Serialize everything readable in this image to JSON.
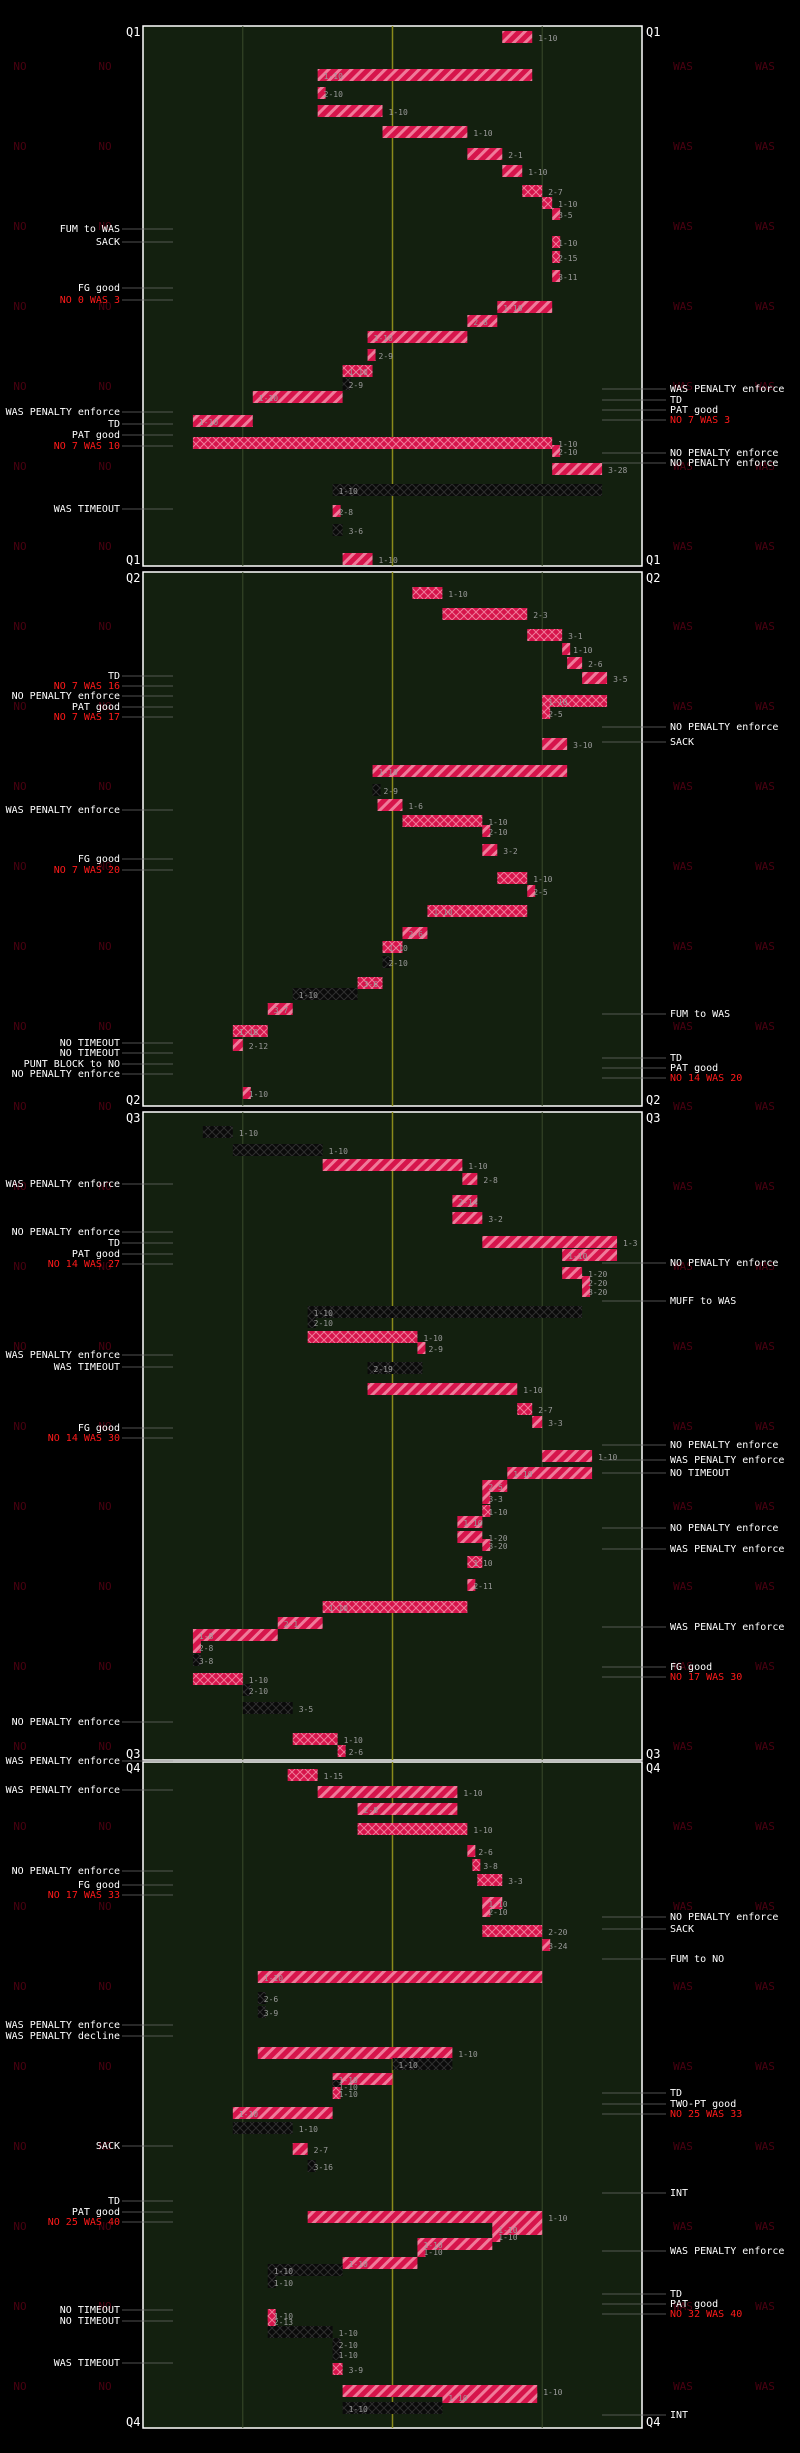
{
  "colors": {
    "background": "#000000",
    "field": "#13200f",
    "field_border": "#ffffff",
    "midfield": "#8a8a1a",
    "yard_line": "#3b4a2a",
    "was_drive": "#d6144b",
    "no_drive": "#111111",
    "score_text": "#ff1a1a",
    "label_text": "#ffffff",
    "down_text": "#9a9a9a",
    "watermark": "#4a0010"
  },
  "quarters": [
    "Q1",
    "Q2",
    "Q3",
    "Q4"
  ],
  "watermarks": {
    "left": "NO",
    "right": "WAS"
  },
  "chart_data": [
    {
      "type": "drive-chart",
      "quarter": "Q1",
      "left_labels": [
        {
          "text": "FUM to WAS",
          "row": 232
        },
        {
          "text": "SACK",
          "row": 245
        },
        {
          "text": "FG good",
          "row": 291
        },
        {
          "text": "NO 0 WAS 3",
          "row": 303,
          "score": true
        },
        {
          "text": "WAS PENALTY enforce",
          "row": 415
        },
        {
          "text": "TD",
          "row": 427
        },
        {
          "text": "PAT good",
          "row": 438
        },
        {
          "text": "NO 7 WAS 10",
          "row": 449,
          "score": true
        },
        {
          "text": "WAS TIMEOUT",
          "row": 512
        }
      ],
      "right_labels": [
        {
          "text": "WAS PENALTY enforce",
          "row": 392
        },
        {
          "text": "TD",
          "row": 403
        },
        {
          "text": "PAT good",
          "row": 413
        },
        {
          "text": "NO 7 WAS 3",
          "row": 423,
          "score": true
        },
        {
          "text": "NO PENALTY enforce",
          "row": 456
        },
        {
          "text": "NO PENALTY enforce",
          "row": 466
        }
      ],
      "down_labels": [
        {
          "text": "1-10",
          "row": 38,
          "yard": 78
        },
        {
          "text": "1-10",
          "row": 76,
          "yard": 35
        },
        {
          "text": "2-10",
          "row": 94,
          "yard": 35
        },
        {
          "text": "1-10",
          "row": 112,
          "yard": 48
        },
        {
          "text": "1-10",
          "row": 133,
          "yard": 65
        },
        {
          "text": "2-1",
          "row": 155,
          "yard": 72
        },
        {
          "text": "1-10",
          "row": 172,
          "yard": 76
        },
        {
          "text": "2-7",
          "row": 192,
          "yard": 80
        },
        {
          "text": "1-10",
          "row": 204,
          "yard": 82
        },
        {
          "text": "3-5",
          "row": 215,
          "yard": 82
        },
        {
          "text": "1-10",
          "row": 243,
          "yard": 82
        },
        {
          "text": "2-15",
          "row": 258,
          "yard": 82
        },
        {
          "text": "3-11",
          "row": 277,
          "yard": 82
        },
        {
          "text": "1-10",
          "row": 308,
          "yard": 71
        },
        {
          "text": "2-8",
          "row": 322,
          "yard": 65
        },
        {
          "text": "1-10",
          "row": 338,
          "yard": 45
        },
        {
          "text": "2-9",
          "row": 356,
          "yard": 46
        },
        {
          "text": "1-10",
          "row": 372,
          "yard": 40
        },
        {
          "text": "2-9",
          "row": 385,
          "yard": 40
        },
        {
          "text": "1-10",
          "row": 398,
          "yard": 22
        },
        {
          "text": "1-10",
          "row": 422,
          "yard": 10
        },
        {
          "text": "1-10",
          "row": 444,
          "yard": 82
        },
        {
          "text": "2-10",
          "row": 452,
          "yard": 82
        },
        {
          "text": "3-28",
          "row": 470,
          "yard": 92
        },
        {
          "text": "1-10",
          "row": 491,
          "yard": 38
        },
        {
          "text": "2-8",
          "row": 512,
          "yard": 38
        },
        {
          "text": "3-6",
          "row": 531,
          "yard": 40
        },
        {
          "text": "1-10",
          "row": 560,
          "yard": 46
        }
      ]
    },
    {
      "type": "drive-chart",
      "quarter": "Q2",
      "left_labels": [
        {
          "text": "TD",
          "row": 679
        },
        {
          "text": "NO 7 WAS 16",
          "row": 689,
          "score": true
        },
        {
          "text": "NO PENALTY enforce",
          "row": 699
        },
        {
          "text": "PAT good",
          "row": 710
        },
        {
          "text": "NO 7 WAS 17",
          "row": 720,
          "score": true
        },
        {
          "text": "WAS PENALTY enforce",
          "row": 813
        },
        {
          "text": "FG good",
          "row": 862
        },
        {
          "text": "NO 7 WAS 20",
          "row": 873,
          "score": true
        },
        {
          "text": "NO TIMEOUT",
          "row": 1046
        },
        {
          "text": "NO TIMEOUT",
          "row": 1056
        },
        {
          "text": "PUNT BLOCK to NO",
          "row": 1067
        },
        {
          "text": "NO PENALTY enforce",
          "row": 1077
        }
      ],
      "right_labels": [
        {
          "text": "NO PENALTY enforce",
          "row": 730
        },
        {
          "text": "SACK",
          "row": 745
        },
        {
          "text": "FUM to WAS",
          "row": 1017
        },
        {
          "text": "TD",
          "row": 1061
        },
        {
          "text": "PAT good",
          "row": 1071
        },
        {
          "text": "NO 14 WAS 20",
          "row": 1081,
          "score": true
        }
      ],
      "down_labels": [
        {
          "text": "1-10",
          "row": 594,
          "yard": 60
        },
        {
          "text": "2-3",
          "row": 615,
          "yard": 77
        },
        {
          "text": "3-1",
          "row": 636,
          "yard": 84
        },
        {
          "text": "1-10",
          "row": 650,
          "yard": 85
        },
        {
          "text": "2-6",
          "row": 664,
          "yard": 88
        },
        {
          "text": "3-5",
          "row": 679,
          "yard": 93
        },
        {
          "text": "1-10",
          "row": 702,
          "yard": 80
        },
        {
          "text": "2-5",
          "row": 714,
          "yard": 80
        },
        {
          "text": "3-10",
          "row": 745,
          "yard": 85
        },
        {
          "text": "1-10",
          "row": 772,
          "yard": 46
        },
        {
          "text": "2-9",
          "row": 791,
          "yard": 47
        },
        {
          "text": "1-6",
          "row": 806,
          "yard": 52
        },
        {
          "text": "1-10",
          "row": 822,
          "yard": 68
        },
        {
          "text": "2-10",
          "row": 832,
          "yard": 68
        },
        {
          "text": "3-2",
          "row": 851,
          "yard": 71
        },
        {
          "text": "1-10",
          "row": 879,
          "yard": 77
        },
        {
          "text": "2-5",
          "row": 892,
          "yard": 77
        },
        {
          "text": "1-10",
          "row": 912,
          "yard": 57
        },
        {
          "text": "2-6",
          "row": 934,
          "yard": 52
        },
        {
          "text": "1-10",
          "row": 948,
          "yard": 48
        },
        {
          "text": "2-10",
          "row": 963,
          "yard": 48
        },
        {
          "text": "3-6",
          "row": 984,
          "yard": 43
        },
        {
          "text": "1-10",
          "row": 995,
          "yard": 30
        },
        {
          "text": "3-7",
          "row": 1010,
          "yard": 25
        },
        {
          "text": "1-10",
          "row": 1032,
          "yard": 18
        },
        {
          "text": "2-12",
          "row": 1046,
          "yard": 20
        },
        {
          "text": "1-10",
          "row": 1094,
          "yard": 20
        }
      ]
    },
    {
      "type": "drive-chart",
      "quarter": "Q3",
      "left_labels": [
        {
          "text": "WAS PENALTY enforce",
          "row": 1187
        },
        {
          "text": "NO PENALTY enforce",
          "row": 1235
        },
        {
          "text": "TD",
          "row": 1246
        },
        {
          "text": "PAT good",
          "row": 1257
        },
        {
          "text": "NO 14 WAS 27",
          "row": 1267,
          "score": true
        },
        {
          "text": "WAS PENALTY enforce",
          "row": 1358
        },
        {
          "text": "WAS TIMEOUT",
          "row": 1370
        },
        {
          "text": "FG good",
          "row": 1431
        },
        {
          "text": "NO 14 WAS 30",
          "row": 1441,
          "score": true
        },
        {
          "text": "NO PENALTY enforce",
          "row": 1725
        }
      ],
      "right_labels": [
        {
          "text": "NO PENALTY enforce",
          "row": 1266
        },
        {
          "text": "MUFF to WAS",
          "row": 1304
        },
        {
          "text": "NO PENALTY enforce",
          "row": 1448
        },
        {
          "text": "WAS PENALTY enforce",
          "row": 1463
        },
        {
          "text": "NO TIMEOUT",
          "row": 1476
        },
        {
          "text": "NO PENALTY enforce",
          "row": 1531
        },
        {
          "text": "WAS PENALTY enforce",
          "row": 1552
        },
        {
          "text": "WAS PENALTY enforce",
          "row": 1630
        },
        {
          "text": "FG good",
          "row": 1670
        },
        {
          "text": "NO 17 WAS 30",
          "row": 1680,
          "score": true
        }
      ],
      "down_labels": [
        {
          "text": "1-10",
          "row": 1133,
          "yard": 18
        },
        {
          "text": "1-10",
          "row": 1151,
          "yard": 36
        },
        {
          "text": "1-10",
          "row": 1166,
          "yard": 64
        },
        {
          "text": "2-8",
          "row": 1180,
          "yard": 67
        },
        {
          "text": "2-14",
          "row": 1202,
          "yard": 62
        },
        {
          "text": "3-2",
          "row": 1219,
          "yard": 68
        },
        {
          "text": "1-3",
          "row": 1243,
          "yard": 95
        },
        {
          "text": "1-10",
          "row": 1256,
          "yard": 84
        },
        {
          "text": "1-20",
          "row": 1274,
          "yard": 88
        },
        {
          "text": "2-20",
          "row": 1283,
          "yard": 88
        },
        {
          "text": "3-20",
          "row": 1292,
          "yard": 88
        },
        {
          "text": "1-10",
          "row": 1313,
          "yard": 33
        },
        {
          "text": "2-10",
          "row": 1323,
          "yard": 33
        },
        {
          "text": "1-10",
          "row": 1338,
          "yard": 55
        },
        {
          "text": "2-9",
          "row": 1349,
          "yard": 56
        },
        {
          "text": "2-19",
          "row": 1369,
          "yard": 45
        },
        {
          "text": "1-10",
          "row": 1390,
          "yard": 75
        },
        {
          "text": "2-7",
          "row": 1410,
          "yard": 78
        },
        {
          "text": "3-3",
          "row": 1423,
          "yard": 80
        },
        {
          "text": "1-10",
          "row": 1457,
          "yard": 90
        },
        {
          "text": "1-10",
          "row": 1474,
          "yard": 73
        },
        {
          "text": "2-5",
          "row": 1487,
          "yard": 68
        },
        {
          "text": "3-3",
          "row": 1499,
          "yard": 68
        },
        {
          "text": "1-10",
          "row": 1512,
          "yard": 68
        },
        {
          "text": "1-10",
          "row": 1523,
          "yard": 63
        },
        {
          "text": "1-20",
          "row": 1538,
          "yard": 68
        },
        {
          "text": "3-20",
          "row": 1546,
          "yard": 68
        },
        {
          "text": "1-10",
          "row": 1563,
          "yard": 65
        },
        {
          "text": "2-11",
          "row": 1586,
          "yard": 65
        },
        {
          "text": "1-10",
          "row": 1608,
          "yard": 36
        },
        {
          "text": "2-1",
          "row": 1624,
          "yard": 27
        },
        {
          "text": "1-8",
          "row": 1636,
          "yard": 10
        },
        {
          "text": "2-8",
          "row": 1648,
          "yard": 10
        },
        {
          "text": "3-8",
          "row": 1661,
          "yard": 10
        },
        {
          "text": "1-10",
          "row": 1680,
          "yard": 20
        },
        {
          "text": "2-10",
          "row": 1691,
          "yard": 20
        },
        {
          "text": "3-5",
          "row": 1709,
          "yard": 30
        },
        {
          "text": "1-10",
          "row": 1740,
          "yard": 39
        },
        {
          "text": "2-6",
          "row": 1752,
          "yard": 40
        }
      ]
    },
    {
      "type": "drive-chart",
      "quarter": "Q4",
      "left_labels": [
        {
          "text": "WAS PENALTY enforce",
          "row": 1764
        },
        {
          "text": "WAS PENALTY enforce",
          "row": 1793
        },
        {
          "text": "NO PENALTY enforce",
          "row": 1874
        },
        {
          "text": "FG good",
          "row": 1888
        },
        {
          "text": "NO 17 WAS 33",
          "row": 1898,
          "score": true
        },
        {
          "text": "WAS PENALTY enforce",
          "row": 2028
        },
        {
          "text": "WAS PENALTY decline",
          "row": 2039
        },
        {
          "text": "SACK",
          "row": 2149
        },
        {
          "text": "TD",
          "row": 2204
        },
        {
          "text": "PAT good",
          "row": 2215
        },
        {
          "text": "NO 25 WAS 40",
          "row": 2225,
          "score": true
        },
        {
          "text": "NO TIMEOUT",
          "row": 2313
        },
        {
          "text": "NO TIMEOUT",
          "row": 2324
        },
        {
          "text": "WAS TIMEOUT",
          "row": 2366
        }
      ],
      "right_labels": [
        {
          "text": "NO PENALTY enforce",
          "row": 1920
        },
        {
          "text": "SACK",
          "row": 1932
        },
        {
          "text": "FUM to NO",
          "row": 1962
        },
        {
          "text": "TD",
          "row": 2096
        },
        {
          "text": "TWO-PT good",
          "row": 2107
        },
        {
          "text": "NO 25 WAS 33",
          "row": 2117,
          "score": true
        },
        {
          "text": "INT",
          "row": 2196
        },
        {
          "text": "WAS PENALTY enforce",
          "row": 2254
        },
        {
          "text": "TD",
          "row": 2297
        },
        {
          "text": "PAT good",
          "row": 2307
        },
        {
          "text": "NO 32 WAS 40",
          "row": 2317,
          "score": true
        },
        {
          "text": "INT",
          "row": 2418
        }
      ],
      "down_labels": [
        {
          "text": "1-15",
          "row": 1776,
          "yard": 35
        },
        {
          "text": "1-10",
          "row": 1793,
          "yard": 63
        },
        {
          "text": "2-8",
          "row": 1810,
          "yard": 43
        },
        {
          "text": "1-10",
          "row": 1830,
          "yard": 65
        },
        {
          "text": "2-6",
          "row": 1852,
          "yard": 66
        },
        {
          "text": "3-8",
          "row": 1866,
          "yard": 67
        },
        {
          "text": "3-3",
          "row": 1881,
          "yard": 72
        },
        {
          "text": "1-10",
          "row": 1904,
          "yard": 68
        },
        {
          "text": "2-10",
          "row": 1912,
          "yard": 68
        },
        {
          "text": "2-20",
          "row": 1932,
          "yard": 80
        },
        {
          "text": "3-24",
          "row": 1946,
          "yard": 80
        },
        {
          "text": "1-10",
          "row": 1978,
          "yard": 23
        },
        {
          "text": "2-6",
          "row": 1999,
          "yard": 23
        },
        {
          "text": "3-9",
          "row": 2013,
          "yard": 23
        },
        {
          "text": "1-10",
          "row": 2054,
          "yard": 62
        },
        {
          "text": "1-10",
          "row": 2065,
          "yard": 50
        },
        {
          "text": "1-10",
          "row": 2080,
          "yard": 38
        },
        {
          "text": "1-10",
          "row": 2087,
          "yard": 38
        },
        {
          "text": "1-10",
          "row": 2094,
          "yard": 38
        },
        {
          "text": "1-10",
          "row": 2114,
          "yard": 18
        },
        {
          "text": "1-10",
          "row": 2129,
          "yard": 30
        },
        {
          "text": "2-7",
          "row": 2150,
          "yard": 33
        },
        {
          "text": "3-16",
          "row": 2167,
          "yard": 33
        },
        {
          "text": "1-10",
          "row": 2218,
          "yard": 80
        },
        {
          "text": "1-10",
          "row": 2230,
          "yard": 70
        },
        {
          "text": "1-10",
          "row": 2237,
          "yard": 70
        },
        {
          "text": "1-10",
          "row": 2245,
          "yard": 55
        },
        {
          "text": "1-10",
          "row": 2252,
          "yard": 55
        },
        {
          "text": "1-10",
          "row": 2264,
          "yard": 40
        },
        {
          "text": "1-10",
          "row": 2271,
          "yard": 25
        },
        {
          "text": "1-10",
          "row": 2283,
          "yard": 25
        },
        {
          "text": "1-10",
          "row": 2316,
          "yard": 25
        },
        {
          "text": "2-13",
          "row": 2322,
          "yard": 25
        },
        {
          "text": "1-10",
          "row": 2333,
          "yard": 38
        },
        {
          "text": "2-10",
          "row": 2345,
          "yard": 38
        },
        {
          "text": "1-10",
          "row": 2355,
          "yard": 38
        },
        {
          "text": "3-9",
          "row": 2370,
          "yard": 40
        },
        {
          "text": "1-10",
          "row": 2392,
          "yard": 79
        },
        {
          "text": "1-10",
          "row": 2398,
          "yard": 60
        },
        {
          "text": "1-10",
          "row": 2409,
          "yard": 40
        }
      ]
    }
  ]
}
